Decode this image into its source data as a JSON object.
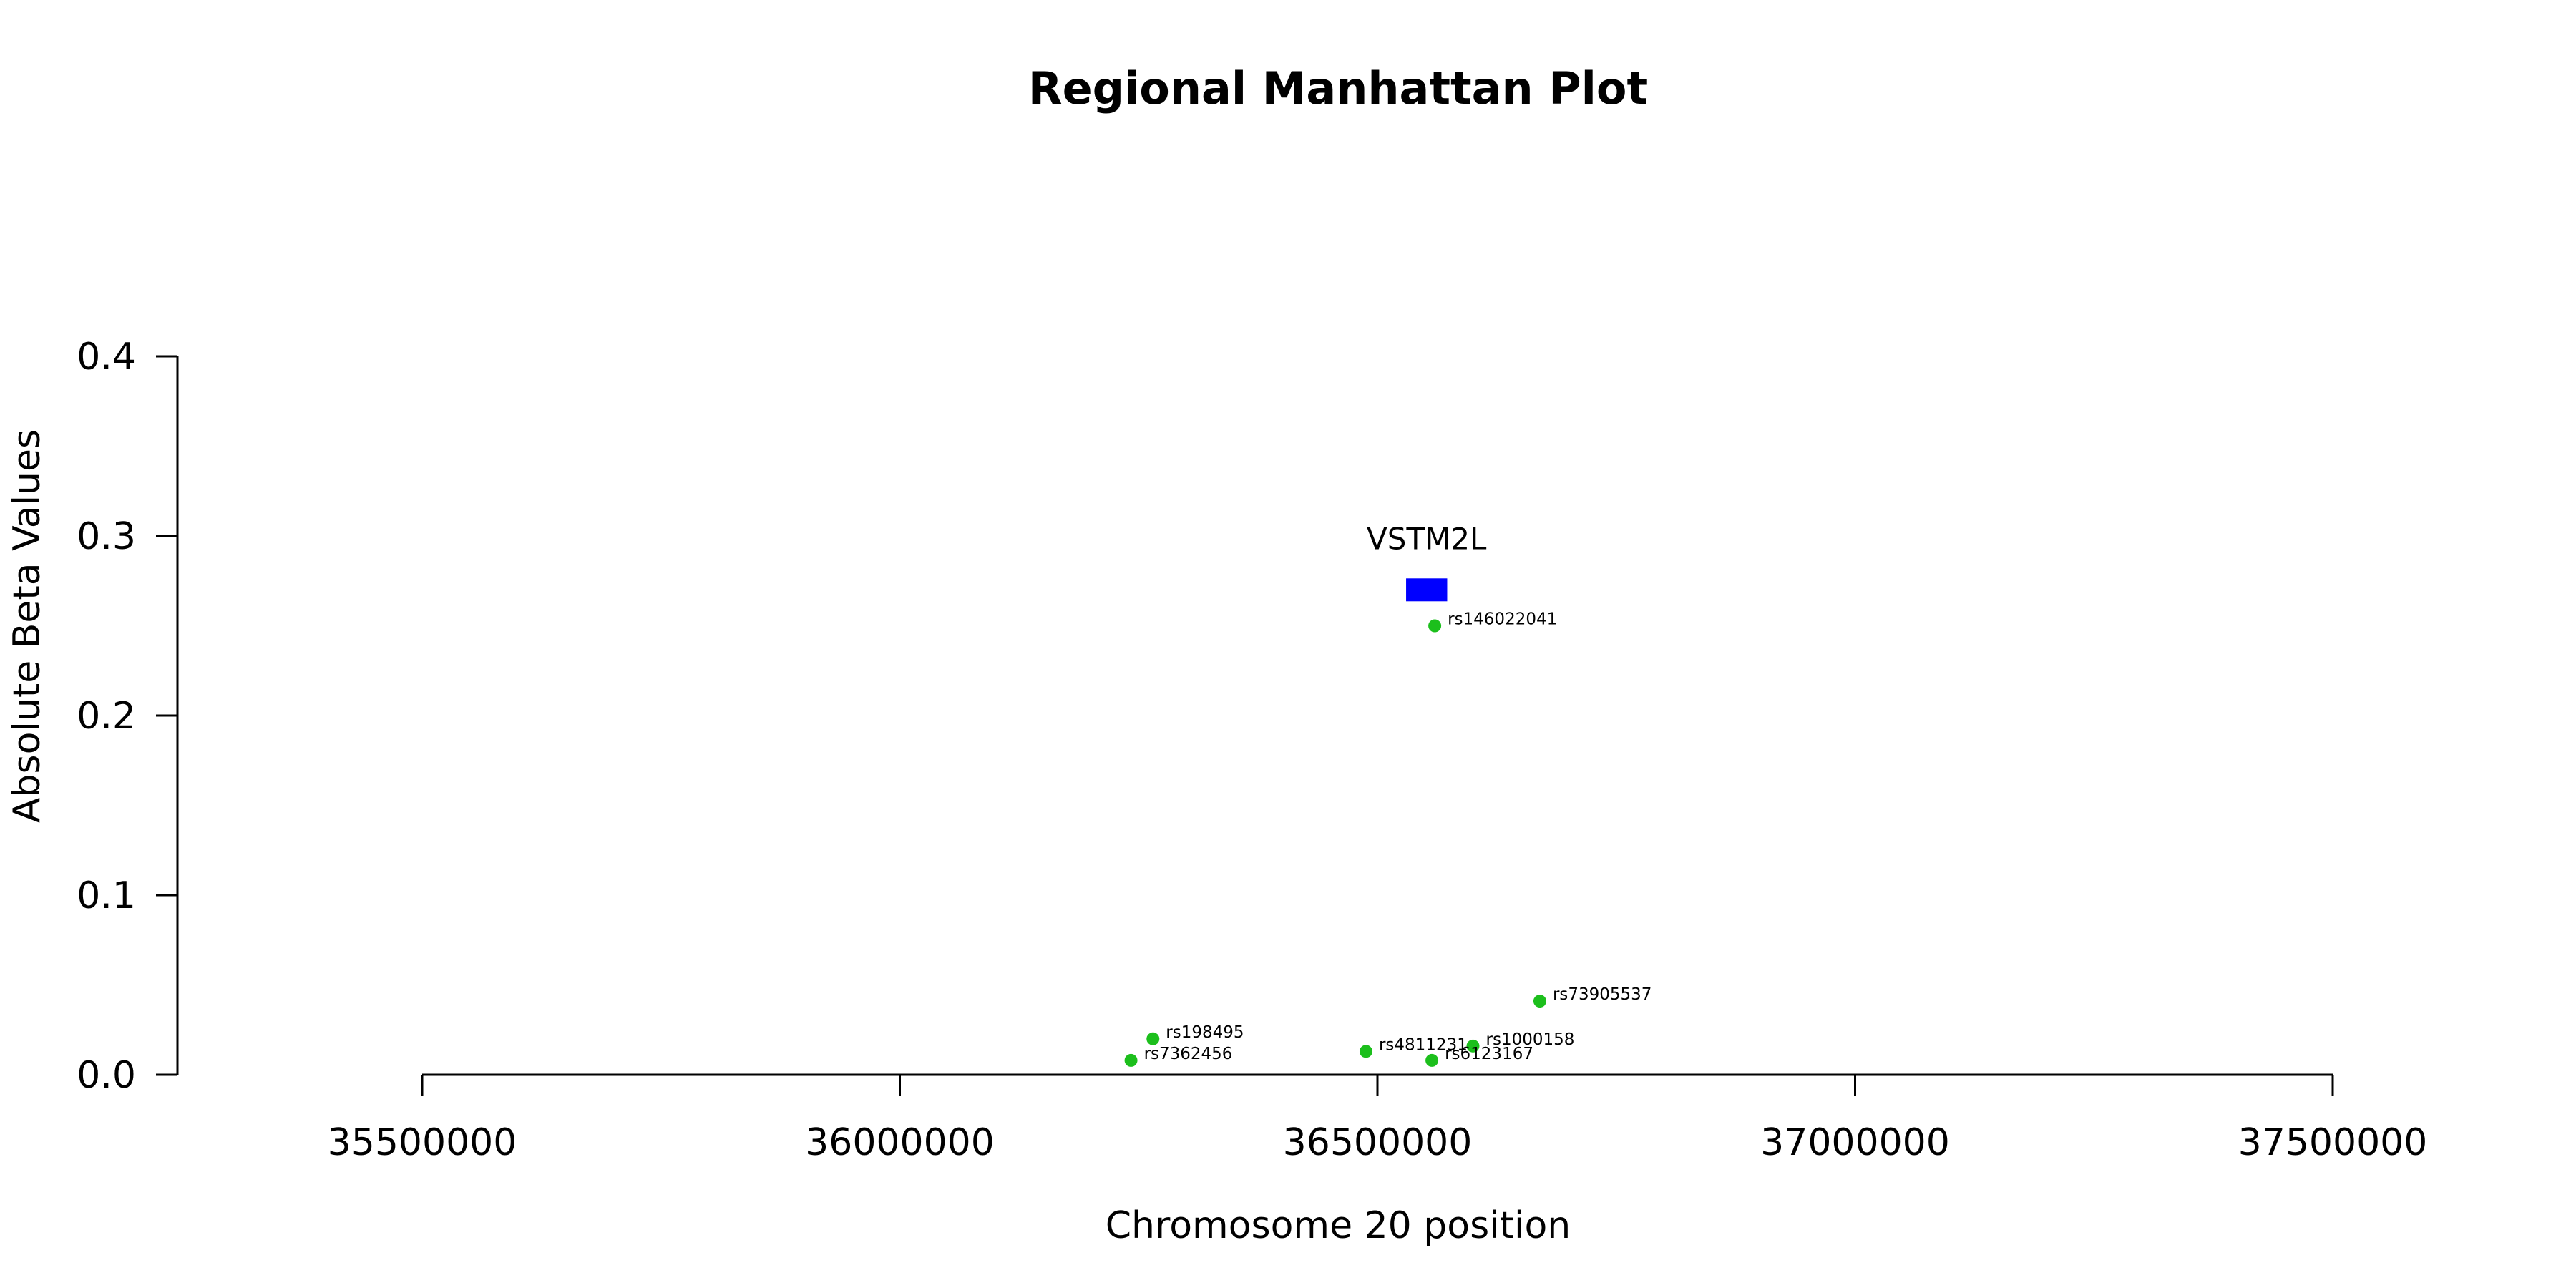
{
  "chart_data": {
    "type": "scatter",
    "title": "Regional Manhattan Plot",
    "xlabel": "Chromosome 20 position",
    "ylabel": "Absolute Beta Values",
    "xlim": [
      35500000,
      37500000
    ],
    "ylim": [
      0,
      0.4
    ],
    "x_ticks": [
      35500000,
      36000000,
      36500000,
      37000000,
      37500000
    ],
    "y_ticks": [
      0.0,
      0.1,
      0.2,
      0.3,
      0.4
    ],
    "x_tick_labels": [
      "35500000",
      "36000000",
      "36500000",
      "37000000",
      "37500000"
    ],
    "y_tick_labels": [
      "0.0",
      "0.1",
      "0.2",
      "0.3",
      "0.4"
    ],
    "grid": false,
    "point_color": "#1cbf1c",
    "points": [
      {
        "label": "rs146022041",
        "x": 36560000,
        "y": 0.25
      },
      {
        "label": "rs73905537",
        "x": 36670000,
        "y": 0.041
      },
      {
        "label": "rs198495",
        "x": 36265000,
        "y": 0.02
      },
      {
        "label": "rs7362456",
        "x": 36242000,
        "y": 0.008
      },
      {
        "label": "rs4811231",
        "x": 36488000,
        "y": 0.013
      },
      {
        "label": "rs1000158",
        "x": 36600000,
        "y": 0.016
      },
      {
        "label": "rs6123167",
        "x": 36557000,
        "y": 0.008
      }
    ],
    "genes": [
      {
        "name": "VSTM2L",
        "start": 36530000,
        "end": 36573000,
        "y": 0.27,
        "color": "#0000ff"
      }
    ]
  }
}
